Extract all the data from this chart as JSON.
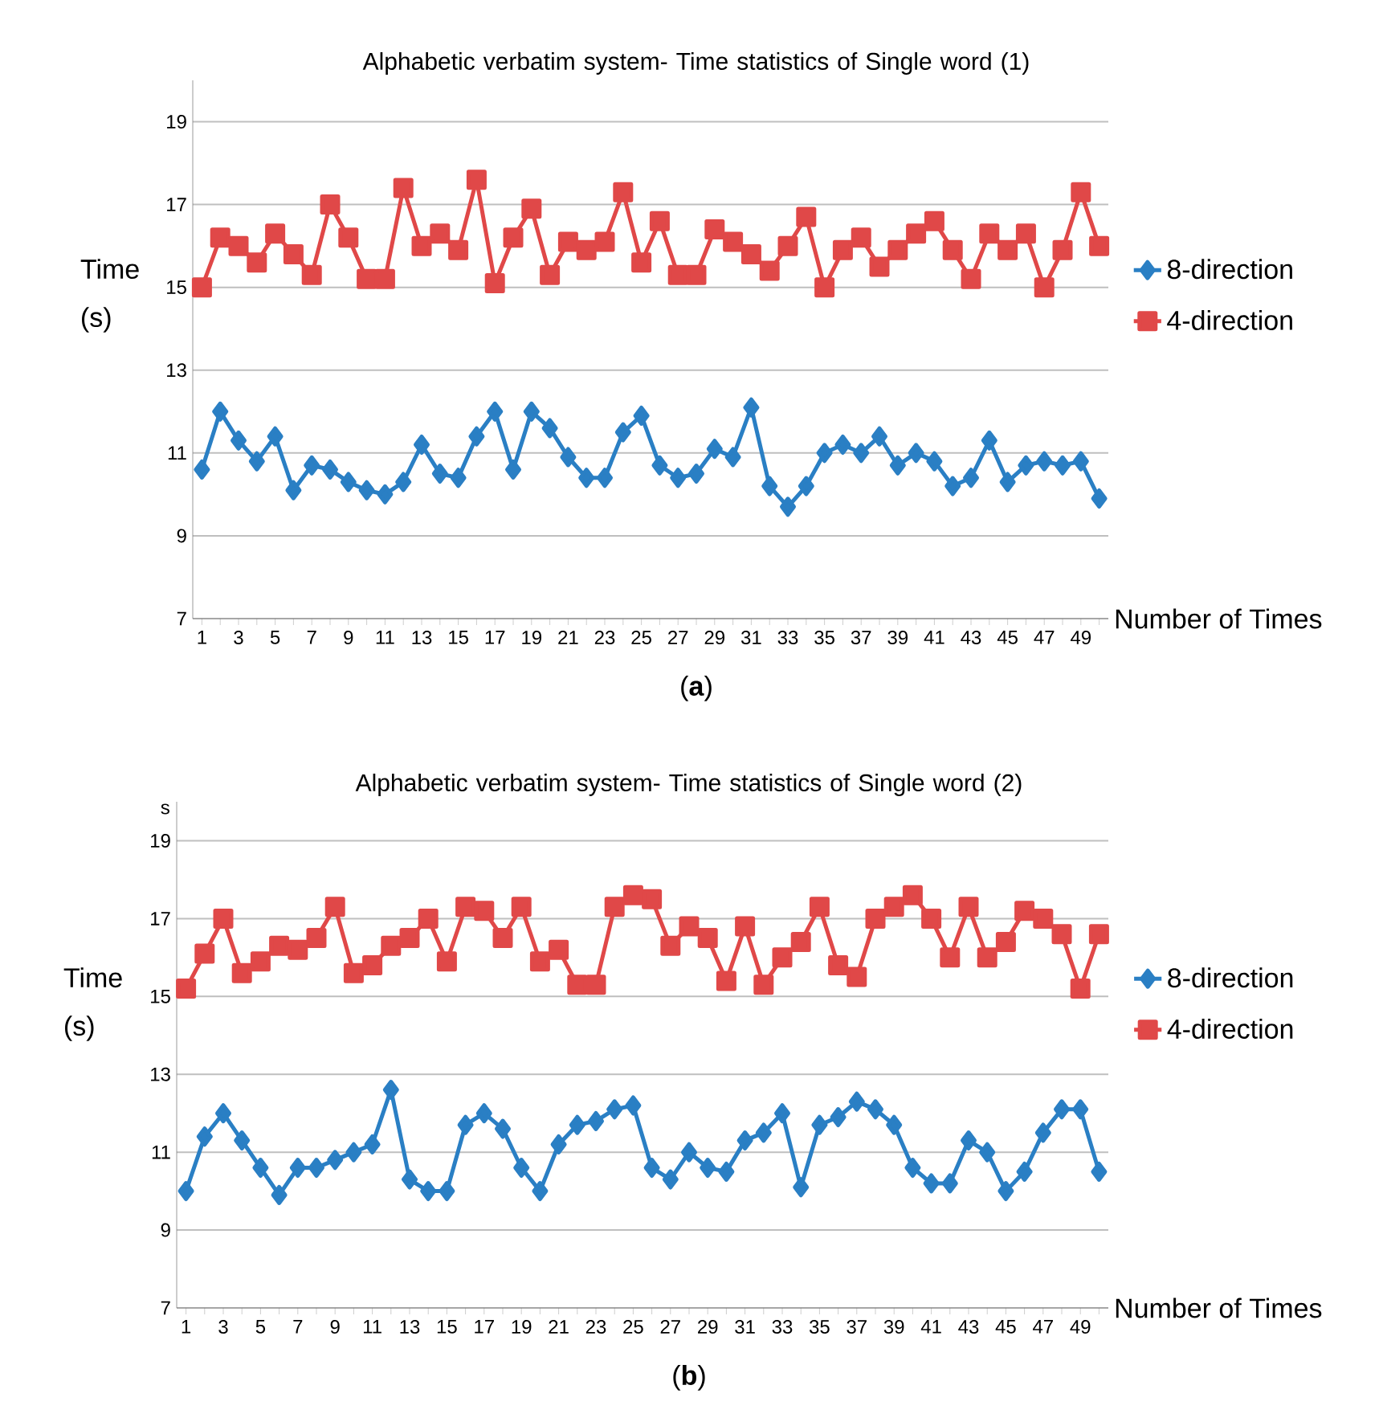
{
  "chart_data": [
    {
      "type": "line",
      "title": "Alphabetic verbatim system- Time statistics of Single word (1)",
      "xlabel": "Number of Times",
      "ylabel": "Time (s)",
      "annotations": [
        "(**a**)"
      ],
      "categories": [
        "1",
        null,
        "3",
        null,
        "5",
        null,
        "7",
        null,
        "9",
        null,
        "11",
        null,
        "13",
        null,
        "15",
        null,
        "17",
        null,
        "19",
        null,
        "21",
        null,
        "23",
        null,
        "25",
        null,
        "27",
        null,
        "29",
        null,
        "31",
        null,
        "33",
        null,
        "35",
        null,
        "37",
        null,
        "39",
        null,
        "41",
        null,
        "43",
        null,
        "45",
        null,
        "47",
        null,
        "49",
        null
      ],
      "series": [
        {
          "name": "8-direction",
          "color": "#2a7fc4",
          "marker": "diamond",
          "values": [
            10.6,
            12.0,
            11.3,
            10.8,
            11.4,
            10.1,
            10.7,
            10.6,
            10.3,
            10.1,
            10.0,
            10.3,
            11.2,
            10.5,
            10.4,
            11.4,
            12.0,
            10.6,
            12.0,
            11.6,
            10.9,
            10.4,
            10.4,
            11.5,
            11.9,
            10.7,
            10.4,
            10.5,
            11.1,
            10.9,
            12.1,
            10.2,
            9.7,
            10.2,
            11.0,
            11.2,
            11.0,
            11.4,
            10.7,
            11.0,
            10.8,
            10.2,
            10.4,
            11.3,
            10.3,
            10.7,
            10.8,
            10.7,
            10.8,
            9.9
          ]
        },
        {
          "name": "4-direction",
          "color": "#e04848",
          "marker": "square",
          "values": [
            15.0,
            16.2,
            16.0,
            15.6,
            16.3,
            15.8,
            15.3,
            17.0,
            16.2,
            15.2,
            15.2,
            17.4,
            16.0,
            16.3,
            15.9,
            17.6,
            15.1,
            16.2,
            16.9,
            15.3,
            16.1,
            15.9,
            16.1,
            17.3,
            15.6,
            16.6,
            15.3,
            15.3,
            16.4,
            16.1,
            15.8,
            15.4,
            16.0,
            16.7,
            15.0,
            15.9,
            16.2,
            15.5,
            15.9,
            16.3,
            16.6,
            15.9,
            15.2,
            16.3,
            15.9,
            16.3,
            15.0,
            15.9,
            17.3,
            16.0
          ]
        }
      ],
      "ylim": [
        7,
        20
      ],
      "yticks": [
        7,
        9,
        11,
        13,
        15,
        17,
        19
      ],
      "grid": "y",
      "legend": "right"
    },
    {
      "type": "line",
      "title": "Alphabetic verbatim system- Time statistics of Single word (2)",
      "xlabel": "Number of Times",
      "ylabel": "Time (s)",
      "annotations": [
        "(**b**)",
        "s"
      ],
      "categories": [
        "1",
        null,
        "3",
        null,
        "5",
        null,
        "7",
        null,
        "9",
        null,
        "11",
        null,
        "13",
        null,
        "15",
        null,
        "17",
        null,
        "19",
        null,
        "21",
        null,
        "23",
        null,
        "25",
        null,
        "27",
        null,
        "29",
        null,
        "31",
        null,
        "33",
        null,
        "35",
        null,
        "37",
        null,
        "39",
        null,
        "41",
        null,
        "43",
        null,
        "45",
        null,
        "47",
        null,
        "49",
        null
      ],
      "series": [
        {
          "name": "8-direction",
          "color": "#2a7fc4",
          "marker": "diamond",
          "values": [
            10.0,
            11.4,
            12.0,
            11.3,
            10.6,
            9.9,
            10.6,
            10.6,
            10.8,
            11.0,
            11.2,
            12.6,
            10.3,
            10.0,
            10.0,
            11.7,
            12.0,
            11.6,
            10.6,
            10.0,
            11.2,
            11.7,
            11.8,
            12.1,
            12.2,
            10.6,
            10.3,
            11.0,
            10.6,
            10.5,
            11.3,
            11.5,
            12.0,
            10.1,
            11.7,
            11.9,
            12.3,
            12.1,
            11.7,
            10.6,
            10.2,
            10.2,
            11.3,
            11.0,
            10.0,
            10.5,
            11.5,
            12.1,
            12.1,
            10.5
          ]
        },
        {
          "name": "4-direction",
          "color": "#e04848",
          "marker": "square",
          "values": [
            15.2,
            16.1,
            17.0,
            15.6,
            15.9,
            16.3,
            16.2,
            16.5,
            17.3,
            15.6,
            15.8,
            16.3,
            16.5,
            17.0,
            15.9,
            17.3,
            17.2,
            16.5,
            17.3,
            15.9,
            16.2,
            15.3,
            15.3,
            17.3,
            17.6,
            17.5,
            16.3,
            16.8,
            16.5,
            15.4,
            16.8,
            15.3,
            16.0,
            16.4,
            17.3,
            15.8,
            15.5,
            17.0,
            17.3,
            17.6,
            17.0,
            16.0,
            17.3,
            16.0,
            16.4,
            17.2,
            17.0,
            16.6,
            15.2,
            16.6
          ]
        }
      ],
      "ylim": [
        7,
        20
      ],
      "yticks": [
        7,
        9,
        11,
        13,
        15,
        17,
        19
      ],
      "grid": "y",
      "legend": "right"
    }
  ]
}
